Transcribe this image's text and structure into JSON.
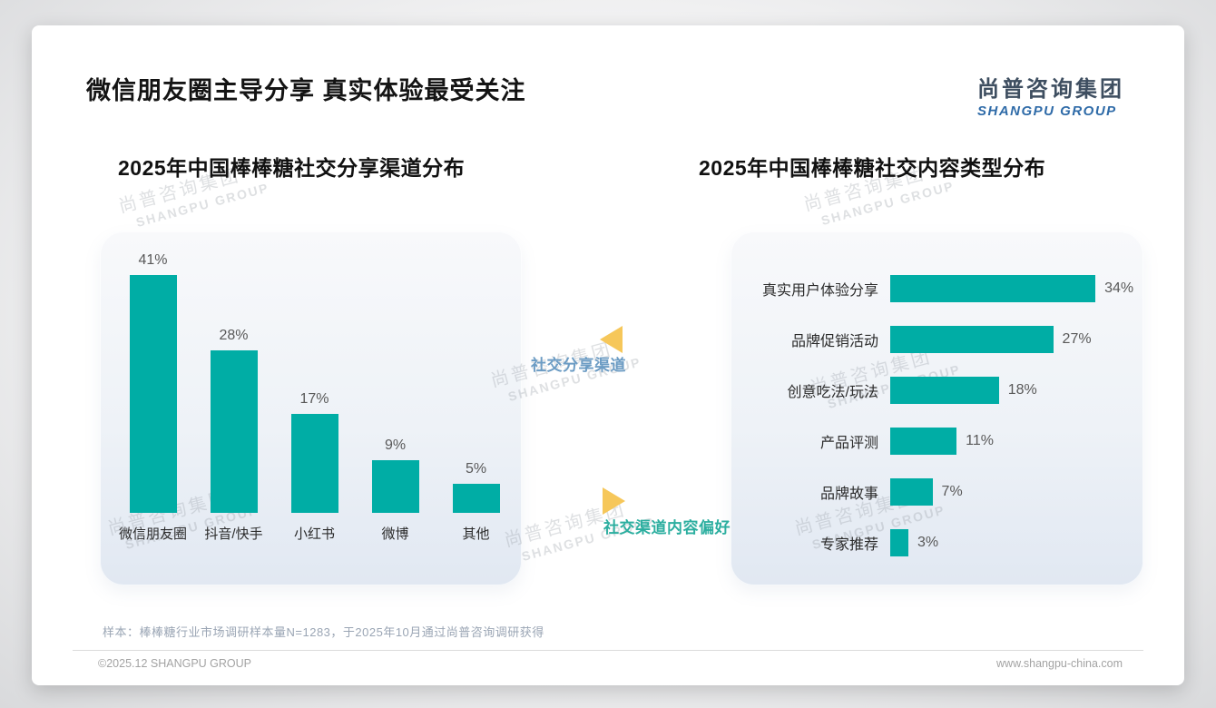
{
  "page": {
    "title": "微信朋友圈主导分享 真实体验最受关注",
    "logo": {
      "cn": "尚普咨询集团",
      "en": "SHANGPU GROUP"
    },
    "watermark": {
      "cn": "尚普咨询集团",
      "en": "SHANGPU GROUP"
    },
    "sample_note": "样本：棒棒糖行业市场调研样本量N=1283，于2025年10月通过尚普咨询调研获得",
    "footer": {
      "copyright": "©2025.12 SHANGPU GROUP",
      "website": "www.shangpu-china.com"
    }
  },
  "annotations": {
    "share_channel": {
      "label": "社交分享渠道",
      "color": "#6C9CC4",
      "triangle": "left-pointing"
    },
    "content_preference": {
      "label": "社交渠道内容偏好",
      "color": "#2BAE9F",
      "triangle": "right-pointing"
    }
  },
  "colors": {
    "bar": "#00ADA5",
    "triangle": "#F6C75A"
  },
  "chart_data": [
    {
      "type": "bar",
      "orientation": "vertical",
      "title": "2025年中国棒棒糖社交分享渠道分布",
      "categories": [
        "微信朋友圈",
        "抖音/快手",
        "小红书",
        "微博",
        "其他"
      ],
      "values": [
        41,
        28,
        17,
        9,
        5
      ],
      "unit": "%",
      "value_labels": [
        "41%",
        "28%",
        "17%",
        "9%",
        "5%"
      ],
      "grid": false,
      "ylim": [
        0,
        45
      ],
      "legend": "none"
    },
    {
      "type": "bar",
      "orientation": "horizontal",
      "title": "2025年中国棒棒糖社交内容类型分布",
      "categories": [
        "真实用户体验分享",
        "品牌促销活动",
        "创意吃法/玩法",
        "产品评测",
        "品牌故事",
        "专家推荐"
      ],
      "values": [
        34,
        27,
        18,
        11,
        7,
        3
      ],
      "unit": "%",
      "value_labels": [
        "34%",
        "27%",
        "18%",
        "11%",
        "7%",
        "3%"
      ],
      "grid": false,
      "xlim": [
        0,
        40
      ],
      "legend": "none"
    }
  ]
}
